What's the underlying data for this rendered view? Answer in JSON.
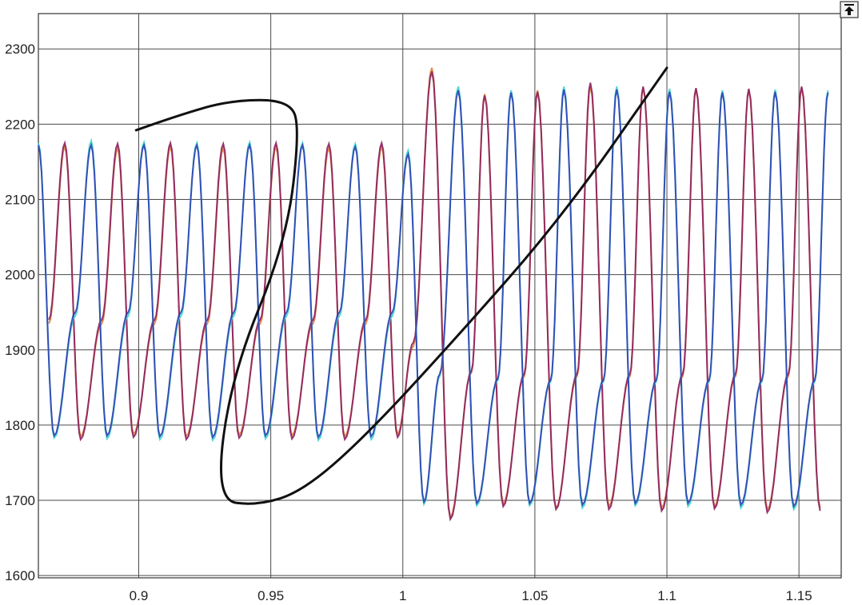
{
  "chart_data": {
    "type": "line",
    "title": "",
    "xlabel": "",
    "ylabel": "",
    "xlim": [
      0.862,
      1.166
    ],
    "ylim": [
      1597,
      2347
    ],
    "grid": true,
    "legend": "none",
    "x_ticks": [
      0.9,
      0.95,
      1,
      1.05,
      1.1,
      1.15
    ],
    "x_tick_labels": [
      "0.9",
      "0.95",
      "1",
      "1.05",
      "1.1",
      "1.15"
    ],
    "y_ticks": [
      1600,
      1700,
      1800,
      1900,
      2000,
      2100,
      2200,
      2300
    ],
    "y_tick_labels": [
      "1600",
      "1700",
      "1800",
      "1900",
      "2000",
      "2100",
      "2200",
      "2300"
    ],
    "series": [
      {
        "color": "#e0803a",
        "peaks": [
          [
            0.872,
            2170
          ],
          [
            0.892,
            2168
          ],
          [
            0.912,
            2170
          ],
          [
            0.932,
            2168
          ],
          [
            0.952,
            2170
          ],
          [
            0.972,
            2168
          ],
          [
            0.992,
            2170
          ],
          [
            1.011,
            2275
          ],
          [
            1.031,
            2240
          ],
          [
            1.051,
            2245
          ],
          [
            1.071,
            2250
          ],
          [
            1.091,
            2248
          ],
          [
            1.111,
            2246
          ],
          [
            1.131,
            2245
          ],
          [
            1.151,
            2248
          ]
        ],
        "troughs": [
          [
            0.878,
            1785
          ],
          [
            0.898,
            1788
          ],
          [
            0.918,
            1785
          ],
          [
            0.938,
            1787
          ],
          [
            0.958,
            1786
          ],
          [
            0.978,
            1785
          ],
          [
            0.998,
            1788
          ],
          [
            1.018,
            1678
          ],
          [
            1.038,
            1695
          ],
          [
            1.058,
            1690
          ],
          [
            1.078,
            1692
          ],
          [
            1.098,
            1690
          ],
          [
            1.118,
            1692
          ],
          [
            1.138,
            1688
          ],
          [
            1.158,
            1690
          ]
        ],
        "minor_peaks": [
          [
            0.866,
            1935
          ],
          [
            0.886,
            1935
          ],
          [
            0.906,
            1935
          ],
          [
            0.926,
            1935
          ],
          [
            0.946,
            1935
          ],
          [
            0.966,
            1935
          ],
          [
            0.986,
            1935
          ],
          [
            1.004,
            1905
          ],
          [
            1.026,
            1870
          ],
          [
            1.046,
            1865
          ],
          [
            1.066,
            1865
          ],
          [
            1.086,
            1865
          ],
          [
            1.106,
            1865
          ],
          [
            1.126,
            1865
          ],
          [
            1.146,
            1865
          ]
        ]
      },
      {
        "color": "#8a2060",
        "peaks": [
          [
            0.872,
            2175
          ],
          [
            0.892,
            2174
          ],
          [
            0.912,
            2175
          ],
          [
            0.932,
            2174
          ],
          [
            0.952,
            2175
          ],
          [
            0.972,
            2174
          ],
          [
            0.992,
            2175
          ],
          [
            1.011,
            2270
          ],
          [
            1.031,
            2238
          ],
          [
            1.051,
            2243
          ],
          [
            1.071,
            2255
          ],
          [
            1.091,
            2250
          ],
          [
            1.111,
            2248
          ],
          [
            1.131,
            2247
          ],
          [
            1.151,
            2250
          ]
        ],
        "troughs": [
          [
            0.878,
            1781
          ],
          [
            0.898,
            1784
          ],
          [
            0.918,
            1781
          ],
          [
            0.938,
            1783
          ],
          [
            0.958,
            1782
          ],
          [
            0.978,
            1781
          ],
          [
            0.998,
            1784
          ],
          [
            1.018,
            1675
          ],
          [
            1.038,
            1692
          ],
          [
            1.058,
            1688
          ],
          [
            1.078,
            1688
          ],
          [
            1.098,
            1686
          ],
          [
            1.118,
            1689
          ],
          [
            1.138,
            1684
          ],
          [
            1.158,
            1686
          ]
        ],
        "minor_peaks": [
          [
            0.866,
            1940
          ],
          [
            0.886,
            1940
          ],
          [
            0.906,
            1940
          ],
          [
            0.926,
            1940
          ],
          [
            0.946,
            1940
          ],
          [
            0.966,
            1940
          ],
          [
            0.986,
            1940
          ],
          [
            1.004,
            1910
          ],
          [
            1.026,
            1872
          ],
          [
            1.046,
            1868
          ],
          [
            1.066,
            1868
          ],
          [
            1.086,
            1868
          ],
          [
            1.106,
            1868
          ],
          [
            1.126,
            1868
          ],
          [
            1.146,
            1868
          ]
        ]
      },
      {
        "color": "#3fd6d0",
        "peaks": [
          [
            0.862,
            2175
          ],
          [
            0.882,
            2178
          ],
          [
            0.902,
            2176
          ],
          [
            0.922,
            2175
          ],
          [
            0.942,
            2176
          ],
          [
            0.962,
            2175
          ],
          [
            0.982,
            2174
          ],
          [
            1.002,
            2165
          ],
          [
            1.021,
            2250
          ],
          [
            1.041,
            2245
          ],
          [
            1.061,
            2250
          ],
          [
            1.081,
            2250
          ],
          [
            1.101,
            2247
          ],
          [
            1.121,
            2245
          ],
          [
            1.141,
            2246
          ],
          [
            1.161,
            2245
          ]
        ],
        "troughs": [
          [
            0.868,
            1783
          ],
          [
            0.888,
            1782
          ],
          [
            0.908,
            1781
          ],
          [
            0.928,
            1780
          ],
          [
            0.948,
            1782
          ],
          [
            0.968,
            1780
          ],
          [
            0.988,
            1781
          ],
          [
            1.008,
            1695
          ],
          [
            1.028,
            1693
          ],
          [
            1.048,
            1693
          ],
          [
            1.068,
            1690
          ],
          [
            1.088,
            1693
          ],
          [
            1.108,
            1692
          ],
          [
            1.128,
            1690
          ],
          [
            1.148,
            1688
          ]
        ],
        "minor_peaks": [
          [
            0.876,
            1945
          ],
          [
            0.896,
            1945
          ],
          [
            0.916,
            1945
          ],
          [
            0.936,
            1945
          ],
          [
            0.956,
            1945
          ],
          [
            0.976,
            1945
          ],
          [
            0.996,
            1945
          ],
          [
            1.014,
            1865
          ],
          [
            1.036,
            1860
          ],
          [
            1.056,
            1858
          ],
          [
            1.076,
            1858
          ],
          [
            1.096,
            1858
          ],
          [
            1.116,
            1858
          ],
          [
            1.136,
            1858
          ],
          [
            1.156,
            1858
          ]
        ]
      },
      {
        "color": "#2f3fb0",
        "peaks": [
          [
            0.862,
            2172
          ],
          [
            0.882,
            2172
          ],
          [
            0.902,
            2172
          ],
          [
            0.922,
            2172
          ],
          [
            0.942,
            2172
          ],
          [
            0.962,
            2172
          ],
          [
            0.982,
            2170
          ],
          [
            1.002,
            2160
          ],
          [
            1.021,
            2245
          ],
          [
            1.041,
            2242
          ],
          [
            1.061,
            2246
          ],
          [
            1.081,
            2246
          ],
          [
            1.101,
            2243
          ],
          [
            1.121,
            2242
          ],
          [
            1.141,
            2243
          ],
          [
            1.161,
            2242
          ]
        ],
        "troughs": [
          [
            0.868,
            1786
          ],
          [
            0.888,
            1786
          ],
          [
            0.908,
            1785
          ],
          [
            0.928,
            1784
          ],
          [
            0.948,
            1786
          ],
          [
            0.968,
            1784
          ],
          [
            0.988,
            1785
          ],
          [
            1.008,
            1698
          ],
          [
            1.028,
            1696
          ],
          [
            1.048,
            1696
          ],
          [
            1.068,
            1694
          ],
          [
            1.088,
            1696
          ],
          [
            1.108,
            1696
          ],
          [
            1.128,
            1694
          ],
          [
            1.148,
            1692
          ]
        ],
        "minor_peaks": [
          [
            0.876,
            1950
          ],
          [
            0.896,
            1950
          ],
          [
            0.916,
            1950
          ],
          [
            0.936,
            1950
          ],
          [
            0.956,
            1950
          ],
          [
            0.976,
            1950
          ],
          [
            0.996,
            1950
          ],
          [
            1.014,
            1868
          ],
          [
            1.036,
            1862
          ],
          [
            1.056,
            1860
          ],
          [
            1.076,
            1860
          ],
          [
            1.096,
            1860
          ],
          [
            1.116,
            1860
          ],
          [
            1.136,
            1860
          ],
          [
            1.156,
            1860
          ]
        ]
      }
    ],
    "annotations": [
      {
        "type": "freehand-stroke",
        "color": "#111111",
        "points": [
          [
            0.899,
            2192
          ],
          [
            0.915,
            2212
          ],
          [
            0.935,
            2232
          ],
          [
            0.957,
            2232
          ],
          [
            0.961,
            2195
          ],
          [
            0.956,
            2045
          ],
          [
            0.935,
            1865
          ],
          [
            0.929,
            1700
          ],
          [
            0.945,
            1693
          ],
          [
            0.962,
            1712
          ],
          [
            0.985,
            1782
          ],
          [
            1.02,
            1915
          ],
          [
            1.06,
            2075
          ],
          [
            1.1,
            2275
          ]
        ]
      }
    ]
  },
  "ui": {
    "expand_icon": "expand-arrow-icon"
  }
}
